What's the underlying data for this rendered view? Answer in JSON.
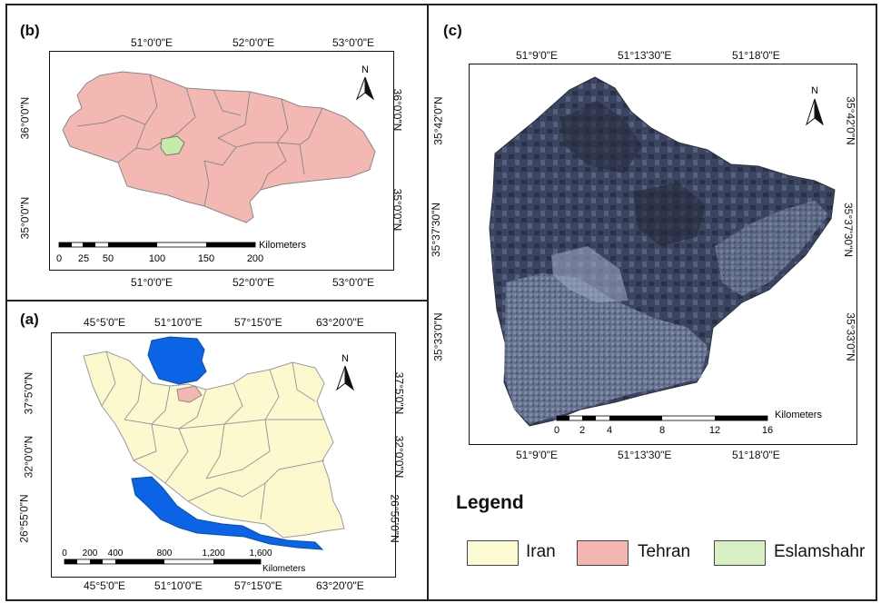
{
  "panel_b": {
    "tag": "(b)",
    "lon_labels": [
      "51°0'0\"E",
      "52°0'0\"E",
      "53°0'0\"E"
    ],
    "lat_labels": [
      "36°0'0\"N",
      "35°0'0\"N"
    ],
    "north": "N",
    "scale_ticks": [
      "0",
      "25",
      "50",
      "100",
      "150",
      "200"
    ],
    "scale_unit": "Kilometers"
  },
  "panel_a": {
    "tag": "(a)",
    "lon_labels": [
      "45°5'0\"E",
      "51°10'0\"E",
      "57°15'0\"E",
      "63°20'0\"E"
    ],
    "lat_labels": [
      "37°5'0\"N",
      "32°0'0\"N",
      "26°55'0\"N"
    ],
    "north": "N",
    "scale_ticks": [
      "0",
      "200",
      "400",
      "800",
      "1,200",
      "1,600"
    ],
    "scale_unit": "Kilometers"
  },
  "panel_c": {
    "tag": "(c)",
    "lon_labels": [
      "51°9'0\"E",
      "51°13'30\"E",
      "51°18'0\"E"
    ],
    "lat_labels": [
      "35°42'0\"N",
      "35°37'30\"N",
      "35°33'0\"N"
    ],
    "north": "N",
    "scale_ticks": [
      "0",
      "2",
      "4",
      "8",
      "12",
      "16"
    ],
    "scale_unit": "Kilometers"
  },
  "legend": {
    "title": "Legend",
    "items": [
      {
        "label": "Iran",
        "color": "#fdfbd3"
      },
      {
        "label": "Tehran",
        "color": "#f5b5b0"
      },
      {
        "label": "Eslamshahr",
        "color": "#d8f0c4"
      }
    ]
  },
  "colors": {
    "tehran_fill": "#f4b8b3",
    "iran_fill": "#fdf9cf",
    "eslamshahr_fill": "#c6eba8",
    "water": "#0b63e6",
    "boundary": "#7a7a7a"
  }
}
